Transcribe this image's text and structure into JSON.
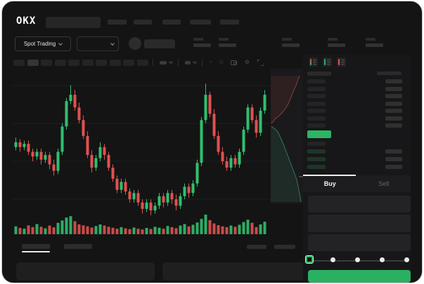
{
  "app": {
    "logo": "OKX"
  },
  "colors": {
    "bg": "#141414",
    "panel": "#171719",
    "accent_green": "#2bb563",
    "candle_green": "#2fbf6f",
    "candle_red": "#e0514f",
    "depth_ask_line": "#c96060",
    "depth_bid_line": "#4cba8c",
    "grid": "#1e1e1e"
  },
  "subheader": {
    "market_selector_label": "Spot Trading"
  },
  "chart_toolbar": {
    "icons": [
      "interval-dropdown",
      "candle-style-dropdown",
      "wave-icon",
      "brush-icon",
      "camera-icon",
      "settings-icon",
      "fullscreen-icon"
    ],
    "wave_glyph": "~",
    "brush_glyph": "◇",
    "settings_glyph": "⚙"
  },
  "order_book": {
    "view_icons": [
      "book-combined-icon",
      "book-bids-icon",
      "book-asks-icon"
    ],
    "ask_row_count": 7,
    "bid_row_count": 4
  },
  "trade_panel": {
    "buy_tab": "Buy",
    "sell_tab": "Sell",
    "active_tab": "Buy",
    "input_count": 3,
    "slider": {
      "value_percent": 0,
      "stops": 5
    }
  },
  "chart_data": {
    "type": "candlestick",
    "title": "",
    "note": "No numeric axis labels are visible in the screenshot; values are normalized 0-100.",
    "ylim": [
      0,
      100
    ],
    "grid": true,
    "candles": [
      [
        55,
        61,
        53,
        58
      ],
      [
        58,
        60,
        52,
        55
      ],
      [
        55,
        59,
        53,
        57
      ],
      [
        57,
        59,
        50,
        52
      ],
      [
        52,
        54,
        46,
        49
      ],
      [
        49,
        54,
        47,
        52
      ],
      [
        52,
        54,
        44,
        47
      ],
      [
        47,
        52,
        45,
        50
      ],
      [
        50,
        52,
        41,
        44
      ],
      [
        44,
        47,
        37,
        40
      ],
      [
        40,
        54,
        38,
        52
      ],
      [
        52,
        70,
        50,
        68
      ],
      [
        68,
        86,
        66,
        84
      ],
      [
        84,
        94,
        82,
        88
      ],
      [
        88,
        91,
        78,
        80
      ],
      [
        80,
        83,
        70,
        72
      ],
      [
        72,
        75,
        60,
        62
      ],
      [
        62,
        65,
        48,
        50
      ],
      [
        50,
        53,
        39,
        42
      ],
      [
        42,
        50,
        40,
        48
      ],
      [
        48,
        58,
        46,
        55
      ],
      [
        55,
        57,
        47,
        50
      ],
      [
        50,
        52,
        40,
        42
      ],
      [
        42,
        44,
        33,
        35
      ],
      [
        35,
        37,
        26,
        28
      ],
      [
        28,
        35,
        26,
        33
      ],
      [
        33,
        35,
        25,
        27
      ],
      [
        27,
        29,
        20,
        22
      ],
      [
        22,
        28,
        20,
        26
      ],
      [
        26,
        28,
        18,
        20
      ],
      [
        20,
        22,
        13,
        16
      ],
      [
        16,
        22,
        14,
        20
      ],
      [
        20,
        22,
        12,
        15
      ],
      [
        15,
        20,
        13,
        18
      ],
      [
        18,
        26,
        16,
        24
      ],
      [
        24,
        26,
        17,
        20
      ],
      [
        20,
        28,
        18,
        26
      ],
      [
        26,
        28,
        19,
        22
      ],
      [
        22,
        25,
        15,
        18
      ],
      [
        18,
        26,
        16,
        24
      ],
      [
        24,
        32,
        22,
        30
      ],
      [
        30,
        32,
        23,
        26
      ],
      [
        26,
        34,
        24,
        32
      ],
      [
        32,
        47,
        30,
        45
      ],
      [
        45,
        74,
        43,
        72
      ],
      [
        72,
        95,
        70,
        88
      ],
      [
        88,
        90,
        74,
        76
      ],
      [
        76,
        79,
        60,
        62
      ],
      [
        62,
        65,
        50,
        52
      ],
      [
        52,
        55,
        44,
        46
      ],
      [
        46,
        49,
        40,
        42
      ],
      [
        42,
        50,
        40,
        48
      ],
      [
        48,
        50,
        42,
        44
      ],
      [
        44,
        54,
        42,
        52
      ],
      [
        52,
        68,
        50,
        66
      ],
      [
        66,
        82,
        64,
        80
      ],
      [
        80,
        82,
        70,
        72
      ],
      [
        72,
        75,
        61,
        64
      ],
      [
        64,
        80,
        62,
        78
      ],
      [
        78,
        91,
        76,
        88
      ]
    ],
    "volume": [
      40,
      32,
      28,
      45,
      36,
      52,
      38,
      30,
      44,
      35,
      58,
      70,
      85,
      92,
      66,
      50,
      45,
      40,
      34,
      42,
      50,
      44,
      38,
      33,
      28,
      36,
      30,
      26,
      34,
      28,
      24,
      32,
      27,
      38,
      33,
      28,
      42,
      36,
      31,
      44,
      52,
      40,
      48,
      60,
      78,
      100,
      72,
      55,
      46,
      40,
      36,
      44,
      38,
      48,
      62,
      74,
      58,
      36,
      50,
      64
    ],
    "depth": {
      "type": "area",
      "orientation": "vertical",
      "asks_points": [
        [
          41,
          10
        ],
        [
          38,
          18
        ],
        [
          36,
          24
        ],
        [
          33,
          30
        ],
        [
          30,
          38
        ],
        [
          27,
          45
        ],
        [
          24,
          52
        ],
        [
          20,
          58
        ],
        [
          16,
          63
        ],
        [
          12,
          67
        ],
        [
          6,
          72
        ],
        [
          1,
          78
        ]
      ],
      "bids_points": [
        [
          1,
          82
        ],
        [
          6,
          86
        ],
        [
          10,
          90
        ],
        [
          13,
          96
        ],
        [
          16,
          103
        ],
        [
          19,
          110
        ],
        [
          22,
          118
        ],
        [
          25,
          126
        ],
        [
          28,
          134
        ],
        [
          31,
          142
        ],
        [
          34,
          150
        ],
        [
          37,
          158
        ],
        [
          39,
          168
        ],
        [
          41,
          178
        ],
        [
          43,
          190
        ]
      ]
    }
  }
}
